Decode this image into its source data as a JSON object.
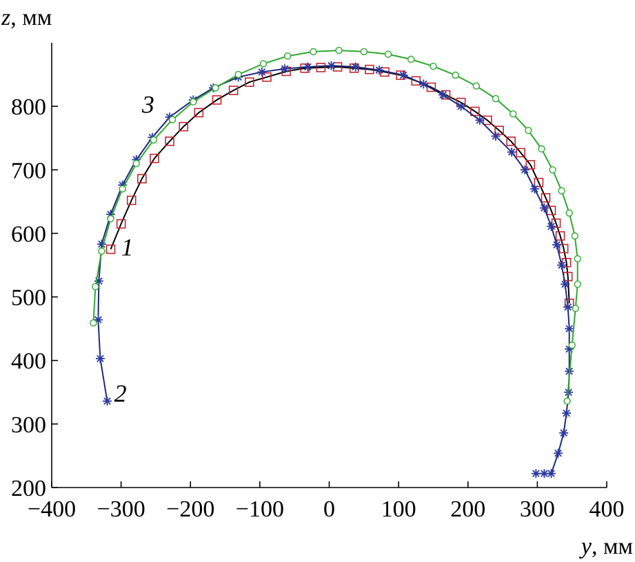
{
  "chart_data": {
    "type": "line",
    "title": "",
    "xlabel_var": "y",
    "xlabel_unit": ", мм",
    "ylabel_var": "z",
    "ylabel_unit": ", мм",
    "xlim": [
      -400,
      400
    ],
    "ylim": [
      200,
      900
    ],
    "xticks": [
      "−400",
      "−300",
      "−200",
      "−100",
      "0",
      "100",
      "200",
      "300",
      "400"
    ],
    "yticks": [
      "200",
      "300",
      "400",
      "500",
      "600",
      "700",
      "800"
    ],
    "grid": false,
    "legend": "none",
    "curve_labels": [
      {
        "text": "1",
        "x": -300,
        "y": 565
      },
      {
        "text": "2",
        "x": -310,
        "y": 335
      },
      {
        "text": "3",
        "x": -270,
        "y": 790
      }
    ],
    "series": [
      {
        "name": "1",
        "color": "#c0262e",
        "line_color": "#000000",
        "marker": "square",
        "x": [
          -315,
          -300,
          -285,
          -270,
          -252,
          -230,
          -210,
          -188,
          -162,
          -138,
          -115,
          -90,
          -62,
          -35,
          -12,
          12,
          36,
          58,
          80,
          103,
          125,
          147,
          168,
          190,
          210,
          228,
          245,
          262,
          276,
          290,
          302,
          312,
          320,
          327,
          333,
          338,
          342,
          344,
          346
        ],
        "y": [
          575,
          615,
          652,
          686,
          718,
          745,
          768,
          790,
          810,
          825,
          838,
          846,
          855,
          860,
          861,
          862,
          860,
          858,
          854,
          849,
          840,
          830,
          818,
          806,
          792,
          778,
          762,
          745,
          727,
          708,
          680,
          656,
          636,
          616,
          596,
          576,
          554,
          532,
          490
        ]
      },
      {
        "name": "2",
        "color": "#2b3aa0",
        "line_color": "#1e2a7a",
        "marker": "asterisk",
        "x": [
          -320,
          -330,
          -333,
          -332,
          -328,
          -315,
          -298,
          -278,
          -255,
          -230,
          -196,
          -167,
          -131,
          -97,
          -64,
          -31,
          3,
          38,
          72,
          107,
          136,
          164,
          190,
          217,
          240,
          263,
          282,
          296,
          310,
          320,
          328,
          335,
          340,
          344,
          346,
          346,
          346,
          345,
          342,
          338,
          330,
          320,
          310,
          298
        ],
        "y": [
          336,
          403,
          464,
          525,
          583,
          630,
          676,
          716,
          751,
          783,
          810,
          829,
          846,
          854,
          859,
          862,
          864,
          862,
          857,
          849,
          835,
          818,
          800,
          778,
          753,
          728,
          700,
          670,
          640,
          611,
          582,
          550,
          520,
          484,
          450,
          418,
          383,
          350,
          317,
          286,
          254,
          222,
          222,
          222
        ]
      },
      {
        "name": "3",
        "color": "#2fa82f",
        "line_color": "#2fa82f",
        "marker": "circle",
        "x": [
          -340,
          -337,
          -328,
          -315,
          -298,
          -278,
          -253,
          -226,
          -196,
          -164,
          -131,
          -95,
          -60,
          -23,
          14,
          50,
          85,
          118,
          150,
          182,
          212,
          240,
          265,
          287,
          306,
          322,
          335,
          346,
          354,
          358,
          358,
          355,
          350,
          343
        ],
        "y": [
          459,
          516,
          572,
          623,
          670,
          710,
          747,
          779,
          807,
          829,
          850,
          867,
          879,
          886,
          888,
          886,
          882,
          874,
          863,
          849,
          832,
          812,
          788,
          762,
          733,
          700,
          667,
          632,
          596,
          560,
          520,
          482,
          424,
          336
        ]
      }
    ]
  }
}
